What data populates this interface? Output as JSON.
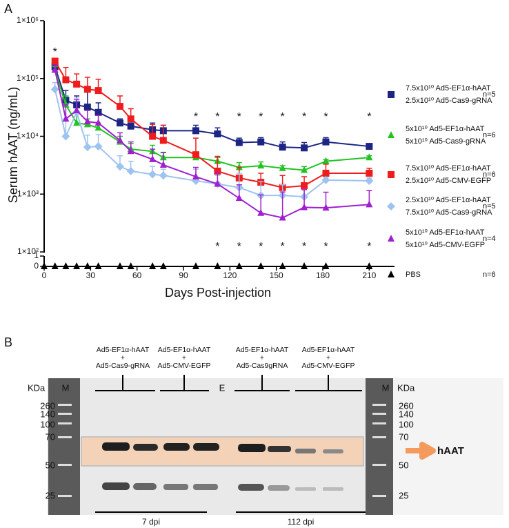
{
  "chart_data": {
    "type": "line",
    "panel_label": "A",
    "y_label": "Serum hAAT (ng/mL)",
    "x_label": "Days Post-injection",
    "log_y": true,
    "x": [
      0,
      7,
      14,
      21,
      28,
      35,
      49,
      56,
      70,
      77,
      98,
      112,
      126,
      140,
      154,
      168,
      182,
      210
    ],
    "xlim": [
      0,
      225
    ],
    "xticks": [
      0,
      30,
      60,
      90,
      120,
      150,
      180,
      210
    ],
    "ylim": [
      100,
      1000000
    ],
    "yticks": [
      {
        "value": 100,
        "label": "1×10²"
      },
      {
        "value": 1000,
        "label": "1×10³"
      },
      {
        "value": 10000,
        "label": "1×10⁴"
      },
      {
        "value": 100000,
        "label": "1×10⁵"
      },
      {
        "value": 1000000,
        "label": "1×10⁶"
      }
    ],
    "y_low_lim": [
      0,
      1
    ],
    "y_low_ticks": [
      0,
      1
    ],
    "star_label": "*",
    "stars_above": [
      7,
      98,
      112,
      126,
      140,
      154,
      168,
      182,
      210
    ],
    "stars_below": [
      112,
      126,
      140,
      154,
      168,
      182,
      210
    ],
    "series": [
      {
        "name": "7.5x10¹⁰ Ad5-EF1α-hAAT\n2.5x10¹⁰ Ad5-Cas9-gRNA",
        "n": "n=5",
        "color": "#1c2584",
        "marker": "square",
        "values": [
          null,
          159000,
          42000,
          35000,
          32000,
          26000,
          17000,
          15000,
          13000,
          12500,
          12500,
          11000,
          7800,
          8000,
          6500,
          6300,
          8000,
          6700
        ],
        "errors": [
          null,
          30000,
          20000,
          15000,
          30000,
          12000,
          3000,
          2000,
          4000,
          3000,
          3000,
          3000,
          1500,
          1500,
          1500,
          1500,
          1500,
          700
        ]
      },
      {
        "name": "5x10¹⁰ Ad5-EF1α-hAAT\n5x10¹⁰ Ad5-Cas9-gRNA",
        "n": "n=6",
        "color": "#22c322",
        "marker": "triangle",
        "values": [
          null,
          140000,
          35000,
          17000,
          16000,
          14000,
          8000,
          6000,
          5500,
          4300,
          4300,
          3700,
          2900,
          3100,
          2800,
          2600,
          3700,
          4300
        ],
        "errors": [
          null,
          20000,
          15000,
          10000,
          4000,
          3000,
          2000,
          1500,
          1500,
          1000,
          600,
          600,
          600,
          500,
          300,
          400,
          300,
          300
        ]
      },
      {
        "name": "7.5x10¹⁰ Ad5-EF1α-hAAT\n2.5x10¹⁰ Ad5-CMV-EGFP",
        "n": "n=6",
        "color": "#ee1c1c",
        "marker": "square",
        "values": [
          null,
          200000,
          95000,
          80000,
          65000,
          62000,
          33000,
          20000,
          10000,
          8500,
          4800,
          2500,
          1900,
          1600,
          1300,
          1400,
          2300,
          2300
        ],
        "errors": [
          null,
          20000,
          60000,
          40000,
          40000,
          35000,
          17000,
          10000,
          6000,
          7000,
          4500,
          2000,
          1000,
          700,
          800,
          600,
          1000,
          500
        ]
      },
      {
        "name": "2.5x10¹⁰ Ad5-EF1α-hAAT\n7.5x10¹⁰ Ad5-Cas9-gRNA",
        "n": "n=5",
        "color": "#9dc3ef",
        "marker": "diamond",
        "values": [
          null,
          65000,
          10000,
          26000,
          6500,
          6700,
          3000,
          2500,
          2200,
          2100,
          1700,
          1500,
          1300,
          950,
          950,
          900,
          1750,
          1700
        ],
        "errors": [
          null,
          20000,
          10000,
          20000,
          4000,
          4000,
          1600,
          1200,
          800,
          600,
          1000,
          600,
          1000,
          700,
          500,
          300,
          200,
          200
        ]
      },
      {
        "name": "5x10¹⁰ Ad5-EF1α-hAAT\n5x10¹⁰ Ad5-CMV-EGFP",
        "n": "n=4",
        "color": "#a020d0",
        "marker": "triangle",
        "values": [
          null,
          140000,
          20000,
          28000,
          18000,
          17000,
          8500,
          5500,
          4000,
          3200,
          2000,
          1500,
          850,
          470,
          390,
          590,
          580,
          660
        ],
        "errors": [
          null,
          30000,
          15000,
          15000,
          10000,
          6000,
          3000,
          2500,
          2000,
          2000,
          900,
          900,
          600,
          500,
          700,
          600,
          500,
          500
        ]
      },
      {
        "name": "PBS",
        "n": "n=6",
        "color": "#000000",
        "marker": "triangle",
        "axis": "ylow",
        "values": [
          0,
          0,
          0,
          0,
          0,
          0,
          0,
          0,
          0,
          0,
          0,
          0,
          0,
          0,
          0,
          0,
          0,
          0
        ]
      }
    ]
  },
  "panel_b": {
    "label": "B",
    "marker_unit": "KDa",
    "marker_lane": "M",
    "empty_lane": "E",
    "markers": [
      260,
      140,
      100,
      70,
      50,
      25
    ],
    "groups": [
      [
        "Ad5-EF1α-hAAT",
        "+",
        "Ad5-Cas9-gRNA"
      ],
      [
        "Ad5-EF1α-hAAT",
        "+",
        "Ad5-CMV-EGFP"
      ],
      [
        "Ad5-EF1α-hAAT",
        "+",
        "Ad5-Cas9gRNA"
      ],
      [
        "Ad5-EF1α-hAAT",
        "+",
        "Ad5-CMV-EGFP"
      ]
    ],
    "band_label": "hAAT",
    "timepoints": [
      "7 dpi",
      "112 dpi"
    ]
  }
}
